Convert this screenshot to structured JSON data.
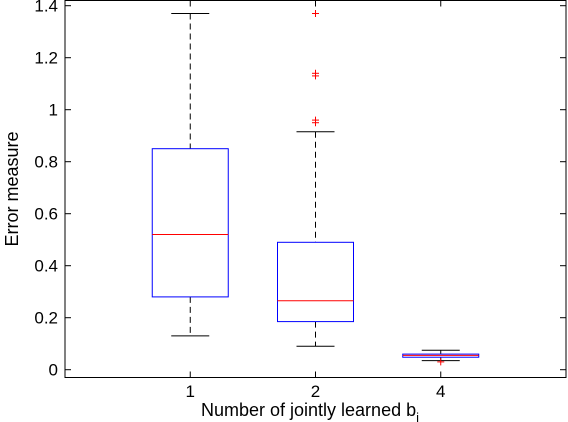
{
  "chart_data": {
    "type": "box",
    "xlabel": "Number of jointly learned b",
    "xlabel_subscript": "i",
    "ylabel": "Error measure",
    "categories": [
      "1",
      "2",
      "4"
    ],
    "ylim": [
      -0.03,
      1.42
    ],
    "yticks": [
      0,
      0.2,
      0.4,
      0.6,
      0.8,
      1,
      1.2,
      1.4
    ],
    "ytick_labels": [
      "0",
      "0.2",
      "0.4",
      "0.6",
      "0.8",
      "1",
      "1.2",
      "1.4"
    ],
    "grid": false,
    "boxes": [
      {
        "category": "1",
        "whisker_low": 0.13,
        "q1": 0.28,
        "median": 0.52,
        "q3": 0.85,
        "whisker_high": 1.37,
        "outliers": []
      },
      {
        "category": "2",
        "whisker_low": 0.09,
        "q1": 0.185,
        "median": 0.265,
        "q3": 0.49,
        "whisker_high": 0.915,
        "outliers": [
          0.95,
          0.96,
          1.13,
          1.14,
          1.37
        ]
      },
      {
        "category": "4",
        "whisker_low": 0.035,
        "q1": 0.048,
        "median": 0.055,
        "q3": 0.06,
        "whisker_high": 0.075,
        "outliers": [
          0.03
        ]
      }
    ],
    "colors": {
      "box": "#0000ff",
      "median": "#ff0000",
      "whisker": "#000000",
      "outlier": "#ff0000",
      "axes": "#000000"
    }
  }
}
